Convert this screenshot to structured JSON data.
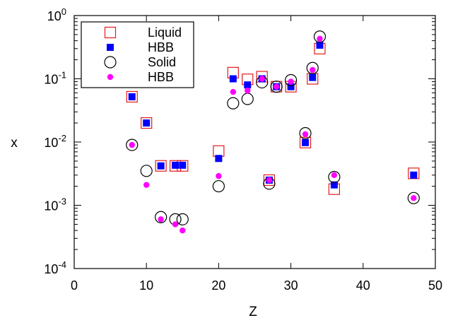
{
  "chart_data": {
    "type": "scatter",
    "xlabel": "Z",
    "ylabel": "x",
    "xlim": [
      0,
      50
    ],
    "ylim": [
      0.0001,
      1
    ],
    "yscale": "log",
    "x_ticks": [
      0,
      10,
      20,
      30,
      40,
      50
    ],
    "y_ticks": [
      {
        "value": 0.0001,
        "base": "10",
        "exp": "-4"
      },
      {
        "value": 0.001,
        "base": "10",
        "exp": "-3"
      },
      {
        "value": 0.01,
        "base": "10",
        "exp": "-2"
      },
      {
        "value": 0.1,
        "base": "10",
        "exp": "-1"
      },
      {
        "value": 1,
        "base": "10",
        "exp": "0"
      }
    ],
    "grid": false,
    "legend_position": "top-left",
    "series": [
      {
        "name": "Liquid",
        "marker": "open-square",
        "color": "#e31a1c",
        "points": [
          [
            8,
            0.052
          ],
          [
            10,
            0.02
          ],
          [
            12,
            0.0042
          ],
          [
            14,
            0.0042
          ],
          [
            15,
            0.0042
          ],
          [
            20,
            0.0072
          ],
          [
            22,
            0.125
          ],
          [
            24,
            0.098
          ],
          [
            26,
            0.108
          ],
          [
            27,
            0.0025
          ],
          [
            28,
            0.075
          ],
          [
            30,
            0.075
          ],
          [
            32,
            0.0098
          ],
          [
            33,
            0.1
          ],
          [
            34,
            0.3
          ],
          [
            36,
            0.0018
          ],
          [
            47,
            0.0032
          ]
        ]
      },
      {
        "name": "HBB",
        "marker": "filled-square",
        "color": "#0000ff",
        "points": [
          [
            8,
            0.052
          ],
          [
            10,
            0.02
          ],
          [
            12,
            0.0042
          ],
          [
            14,
            0.0043
          ],
          [
            15,
            0.0043
          ],
          [
            20,
            0.0055
          ],
          [
            22,
            0.1
          ],
          [
            24,
            0.08
          ],
          [
            26,
            0.1
          ],
          [
            27,
            0.0025
          ],
          [
            28,
            0.075
          ],
          [
            30,
            0.075
          ],
          [
            32,
            0.0098
          ],
          [
            33,
            0.105
          ],
          [
            34,
            0.34
          ],
          [
            36,
            0.0021
          ],
          [
            47,
            0.003
          ]
        ]
      },
      {
        "name": "Solid",
        "marker": "open-circle",
        "color": "#000000",
        "points": [
          [
            8,
            0.009
          ],
          [
            10,
            0.0035
          ],
          [
            12,
            0.00065
          ],
          [
            14,
            0.0006
          ],
          [
            15,
            0.0006
          ],
          [
            20,
            0.002
          ],
          [
            22,
            0.041
          ],
          [
            24,
            0.048
          ],
          [
            26,
            0.088
          ],
          [
            27,
            0.0022
          ],
          [
            28,
            0.075
          ],
          [
            30,
            0.095
          ],
          [
            32,
            0.0138
          ],
          [
            33,
            0.148
          ],
          [
            34,
            0.465
          ],
          [
            36,
            0.0028
          ],
          [
            47,
            0.0013
          ]
        ]
      },
      {
        "name": "HBB",
        "marker": "filled-circle",
        "color": "#ff00ff",
        "points": [
          [
            8,
            0.009
          ],
          [
            10,
            0.0021
          ],
          [
            12,
            0.0006
          ],
          [
            14,
            0.0005
          ],
          [
            15,
            0.0004
          ],
          [
            20,
            0.0029
          ],
          [
            22,
            0.062
          ],
          [
            24,
            0.065
          ],
          [
            26,
            0.1
          ],
          [
            27,
            0.0025
          ],
          [
            28,
            0.075
          ],
          [
            30,
            0.09
          ],
          [
            32,
            0.0133
          ],
          [
            33,
            0.138
          ],
          [
            34,
            0.43
          ],
          [
            36,
            0.003
          ],
          [
            47,
            0.0013
          ]
        ]
      }
    ]
  }
}
